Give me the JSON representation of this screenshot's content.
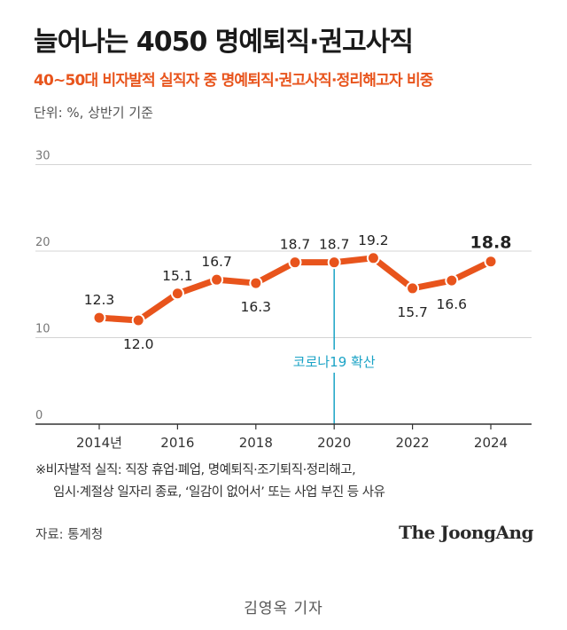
{
  "title": "늘어나는 4050 명예퇴직·권고사직",
  "subtitle": "40~50대 비자발적 실직자 중 명예퇴직·권고사직·정리해고자 비중",
  "unit_note": "단위: %, 상반기 기준",
  "chart_data": {
    "type": "line",
    "title": "늘어나는 4050 명예퇴직·권고사직",
    "subtitle": "40~50대 비자발적 실직자 중 명예퇴직·권고사직·정리해고자 비중",
    "xlabel": "",
    "ylabel": "",
    "ylim": [
      0,
      30
    ],
    "y_ticks": [
      0,
      10,
      20,
      30
    ],
    "y_tick_labels": [
      "0",
      "10",
      "20",
      "30"
    ],
    "x": [
      2014,
      2015,
      2016,
      2017,
      2018,
      2019,
      2020,
      2021,
      2022,
      2023,
      2024
    ],
    "x_tick_values": [
      2014,
      2016,
      2018,
      2020,
      2022,
      2024
    ],
    "x_tick_labels": [
      "2014년",
      "2016",
      "2018",
      "2020",
      "2022",
      "2024"
    ],
    "series": [
      {
        "name": "명예퇴직·권고사직·정리해고자 비중",
        "values": [
          12.3,
          12.0,
          15.1,
          16.7,
          16.3,
          18.7,
          18.7,
          19.2,
          15.7,
          16.6,
          18.8
        ],
        "labels": [
          "12.3",
          "12.0",
          "15.1",
          "16.7",
          "16.3",
          "18.7",
          "18.7",
          "19.2",
          "15.7",
          "16.6",
          "18.8"
        ],
        "label_pos": [
          "above",
          "below",
          "above",
          "above",
          "below",
          "above",
          "above",
          "above",
          "below",
          "below",
          "above"
        ],
        "color": "#e8541c"
      }
    ],
    "annotation": {
      "x": 2020,
      "text": "코로나19 확산",
      "color": "#1ba3c6"
    },
    "grid": true
  },
  "footnote": {
    "line1": "※비자발적 실직: 직장 휴업·폐업, 명예퇴직·조기퇴직·정리해고,",
    "line2": "임시·계절상 일자리 종료, ‘일감이 없어서’ 또는 사업 부진 등 사유"
  },
  "source": "자료: 통계청",
  "brand": "The JoongAng",
  "reporter": "김영옥 기자"
}
